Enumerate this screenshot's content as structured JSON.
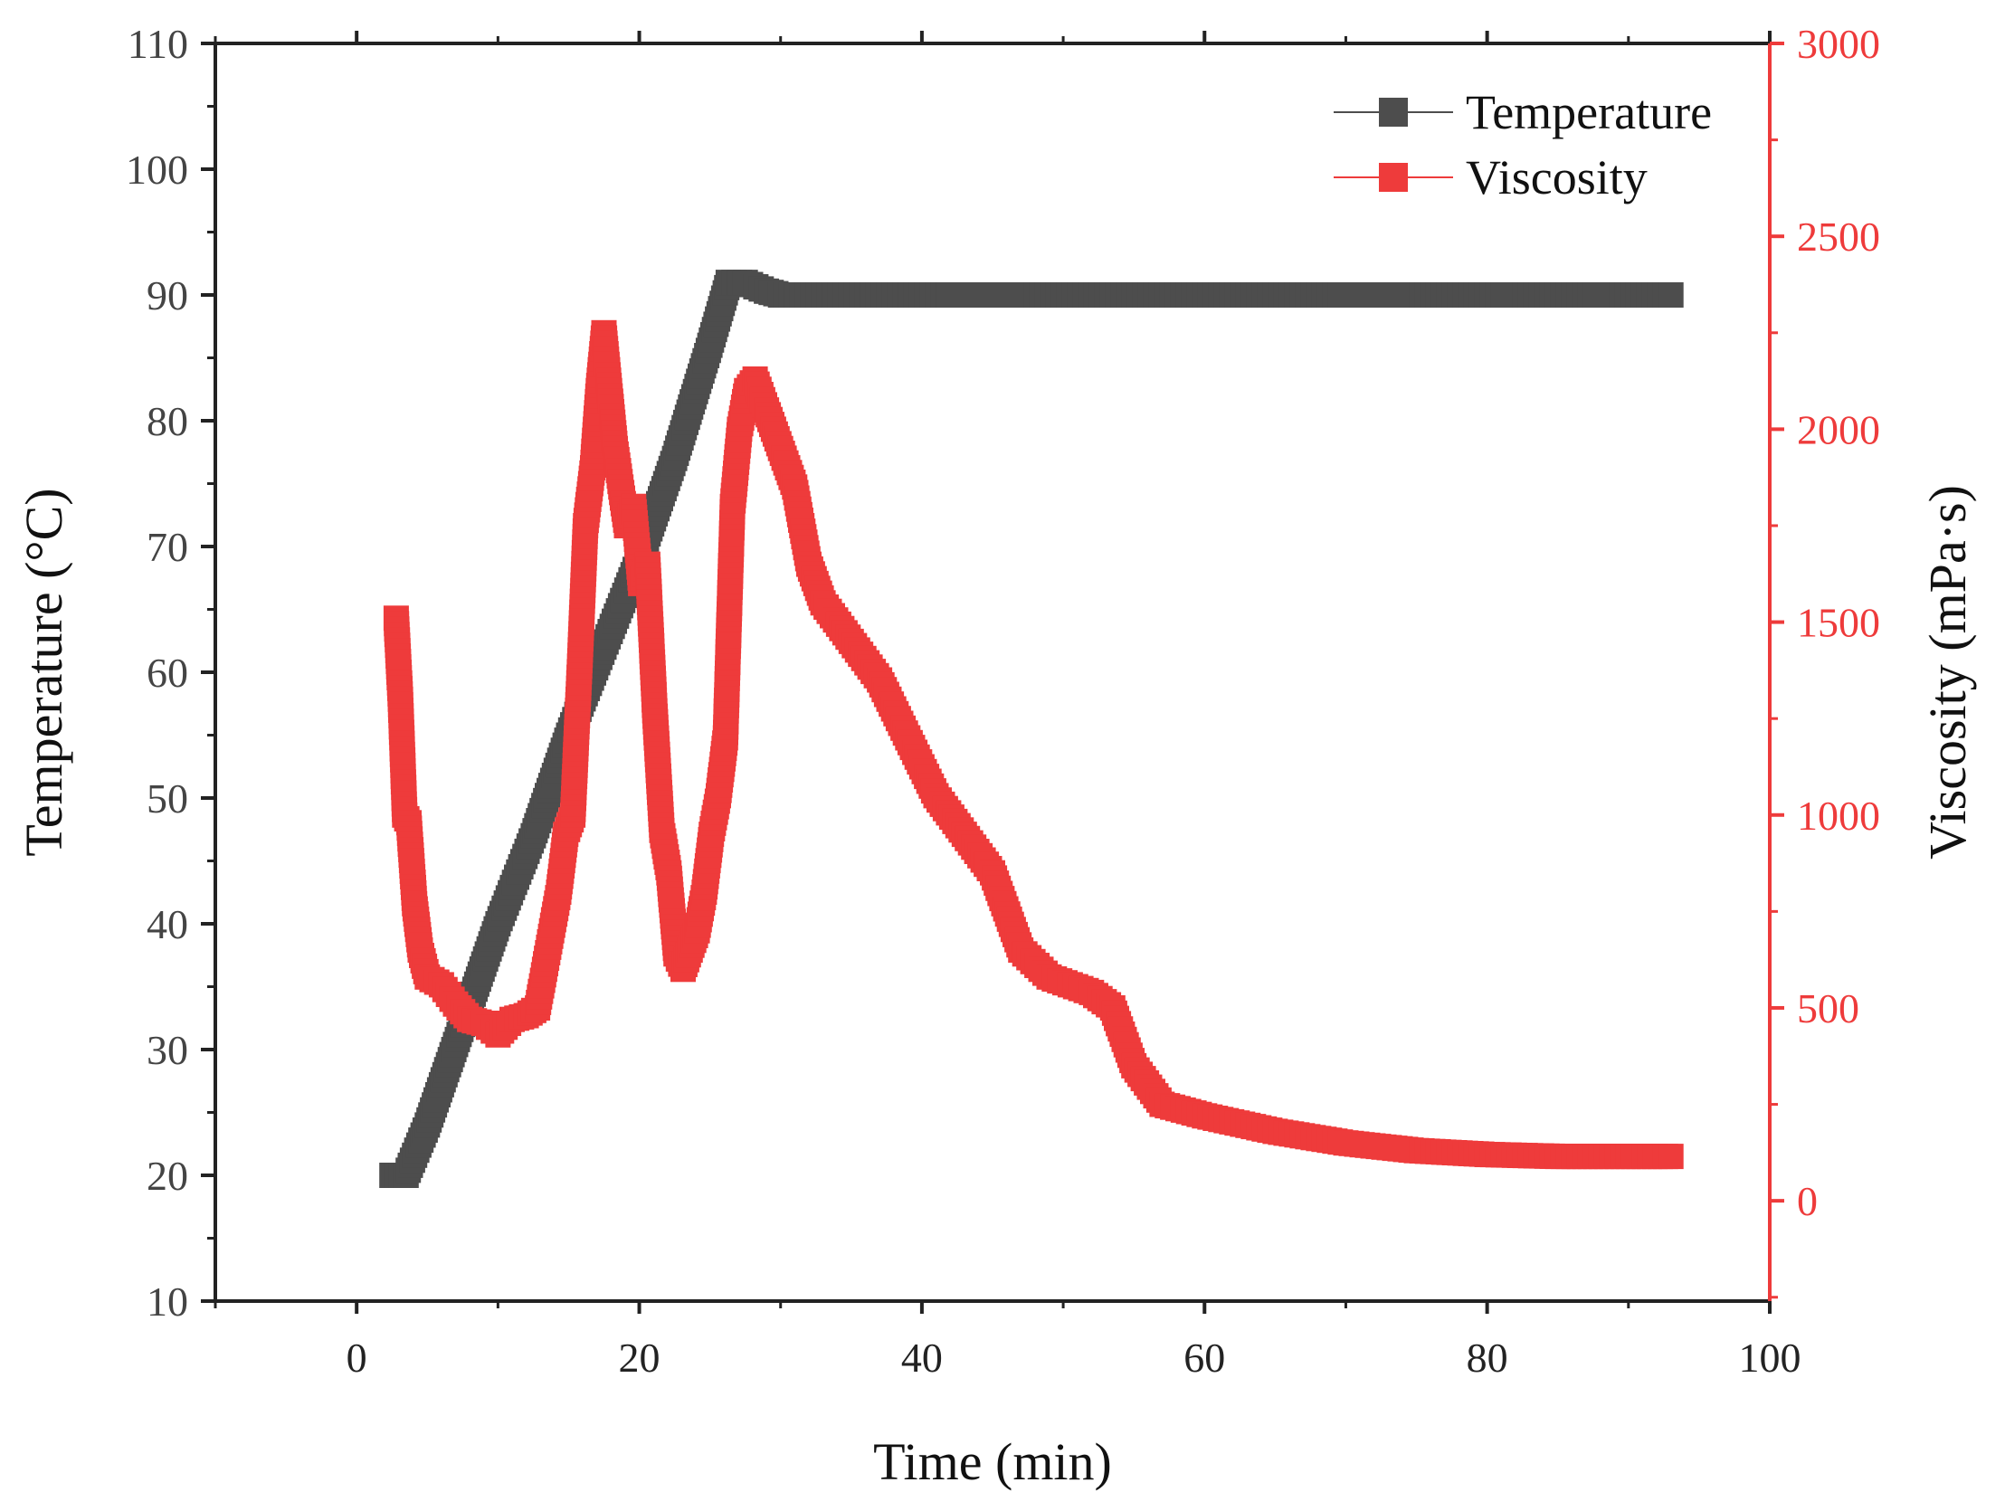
{
  "chart_data": {
    "type": "line",
    "xlabel": "Time (min)",
    "ylabel": "Temperature (°C)",
    "y2label": "Viscosity (mPa·s)",
    "xlim": [
      -10,
      100
    ],
    "ylim": [
      10,
      110
    ],
    "y2lim": [
      -260,
      3000
    ],
    "x_ticks": [
      0,
      20,
      40,
      60,
      80,
      100
    ],
    "y_ticks": [
      10,
      20,
      30,
      40,
      50,
      60,
      70,
      80,
      90,
      100,
      110
    ],
    "y2_ticks": [
      0,
      500,
      1000,
      1500,
      2000,
      2500,
      3000
    ],
    "legend_position": "top-right",
    "grid": false,
    "colors": {
      "temperature": "#4d4d4d",
      "viscosity": "#ee3b3b",
      "axis": "#222222",
      "right_axis": "#ee3b3b"
    },
    "series": [
      {
        "name": "Temperature",
        "axis": "left",
        "marker": "square",
        "x": [
          2.5,
          3.5,
          5,
          7.5,
          10,
          12.5,
          15,
          17.5,
          20,
          22.5,
          25,
          26.3,
          27.5,
          29,
          30,
          35,
          40,
          50,
          60,
          70,
          80,
          93
        ],
        "y": [
          20,
          20,
          24,
          32,
          40,
          47,
          55,
          62,
          69,
          77,
          86,
          91,
          91,
          90.3,
          90,
          90,
          90,
          90,
          90,
          90,
          90,
          90
        ]
      },
      {
        "name": "Viscosity",
        "axis": "right",
        "marker": "square",
        "x": [
          2.8,
          3.1,
          3.4,
          3.7,
          4.1,
          4.5,
          5,
          6,
          7,
          8,
          9,
          10,
          11,
          12,
          12.8,
          13.3,
          13.8,
          14.3,
          14.8,
          15.3,
          15.8,
          16.2,
          16.7,
          17.1,
          17.5,
          17.9,
          18.3,
          18.7,
          19.1,
          19.6,
          20.1,
          20.6,
          21.1,
          21.6,
          22.1,
          22.6,
          23.1,
          23.6,
          24.1,
          24.6,
          25.1,
          25.6,
          26.1,
          26.6,
          27.1,
          27.6,
          28.2,
          29,
          30,
          31,
          32,
          33,
          35,
          37,
          39,
          41,
          43,
          45,
          47,
          49,
          52,
          53.5,
          55,
          57,
          60,
          65,
          70,
          75,
          80,
          85,
          90,
          93
        ],
        "y": [
          1510,
          1300,
          1000,
          980,
          770,
          650,
          580,
          560,
          510,
          470,
          460,
          430,
          470,
          480,
          500,
          600,
          700,
          800,
          950,
          1000,
          1400,
          1750,
          1900,
          2100,
          2250,
          2100,
          1950,
          1850,
          1750,
          1800,
          1600,
          1650,
          1270,
          960,
          850,
          640,
          600,
          650,
          700,
          800,
          950,
          1050,
          1200,
          1800,
          2000,
          2100,
          2130,
          2050,
          1950,
          1850,
          1650,
          1550,
          1450,
          1350,
          1200,
          1050,
          950,
          850,
          650,
          580,
          540,
          500,
          350,
          250,
          220,
          180,
          150,
          130,
          120,
          115,
          115,
          115
        ]
      }
    ]
  }
}
